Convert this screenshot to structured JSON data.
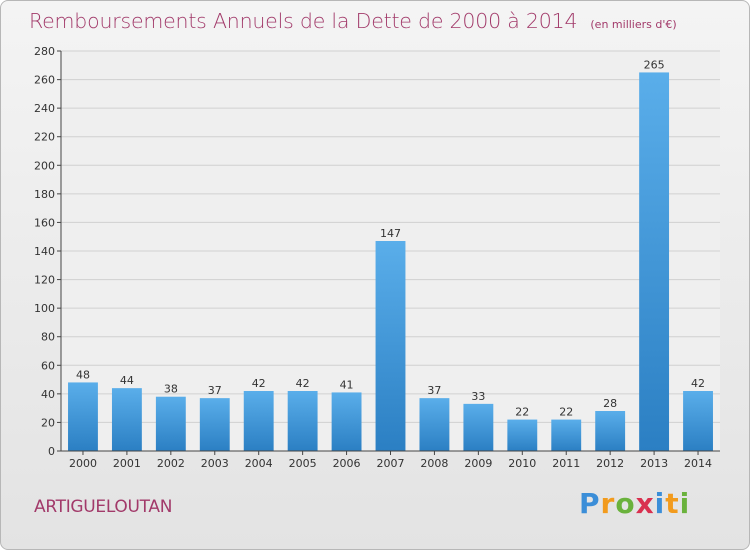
{
  "header": {
    "title": "Remboursements Annuels de la Dette de 2000 à 2014",
    "subtitle": "(en milliers d'€)"
  },
  "footer": {
    "commune": "ARTIGUELOUTAN",
    "logo_letters": [
      "P",
      "r",
      "o",
      "x",
      "i",
      "t",
      "i"
    ]
  },
  "colors": {
    "title": "#a23a6a",
    "bar_light": "#5aaeea",
    "bar_dark": "#2b7fc3"
  },
  "chart_data": {
    "type": "bar",
    "categories": [
      "2000",
      "2001",
      "2002",
      "2003",
      "2004",
      "2005",
      "2006",
      "2007",
      "2008",
      "2009",
      "2010",
      "2011",
      "2012",
      "2013",
      "2014"
    ],
    "values": [
      48,
      44,
      38,
      37,
      42,
      42,
      41,
      147,
      37,
      33,
      22,
      22,
      28,
      265,
      42
    ],
    "ylim": [
      0,
      280
    ],
    "yticks": [
      0,
      20,
      40,
      60,
      80,
      100,
      120,
      140,
      160,
      180,
      200,
      220,
      240,
      260,
      280
    ],
    "grid": true
  }
}
